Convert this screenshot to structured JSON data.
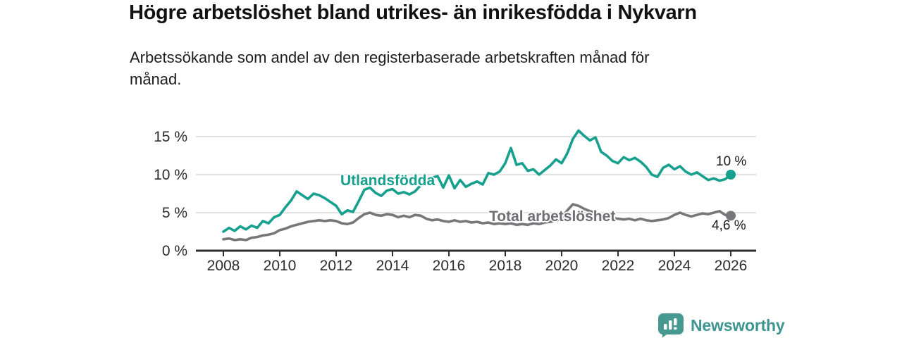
{
  "header": {
    "title": "Högre arbetslöshet bland utrikes- än inrikesfödda i Nykvarn",
    "subtitle": "Arbetssökande som andel av den registerbaserade arbetskraften månad för\nmånad."
  },
  "footer": {
    "brand": "Newsworthy"
  },
  "colors": {
    "background": "#ffffff",
    "title_text": "#111111",
    "subtitle_text": "#1d1d1d",
    "axis_text": "#2b2b2b",
    "grid": "#d8d8d8",
    "axis": "#2e2e2e",
    "foreign_born_line": "#17a08e",
    "total_line": "#77777b",
    "total_label": "#6e6e73",
    "end_label_text": "#1a1a1a",
    "brand_teal": "#3f9590"
  },
  "chart_data": {
    "type": "line",
    "title": "Högre arbetslöshet bland utrikes- än inrikesfödda i Nykvarn",
    "subtitle": "Arbetssökande som andel av den registerbaserade arbetskraften månad för månad.",
    "unit": "%",
    "xlabel": "",
    "ylabel": "",
    "grid": "horizontal",
    "legend_position": "inline-labels",
    "xlim": [
      2007.0,
      2027.0
    ],
    "ylim": [
      0,
      17.5
    ],
    "xticks": [
      2008,
      2010,
      2012,
      2014,
      2016,
      2018,
      2020,
      2022,
      2024,
      2026
    ],
    "yticks": [
      {
        "value": 0,
        "label": "0 %"
      },
      {
        "value": 5,
        "label": "5 %"
      },
      {
        "value": 10,
        "label": "10 %"
      },
      {
        "value": 15,
        "label": "15 %"
      }
    ],
    "x": [
      2008,
      2008.2,
      2008.4,
      2008.6,
      2008.8,
      2009,
      2009.2,
      2009.4,
      2009.6,
      2009.8,
      2010,
      2010.2,
      2010.4,
      2010.6,
      2010.8,
      2011,
      2011.2,
      2011.4,
      2011.6,
      2011.8,
      2012,
      2012.2,
      2012.4,
      2012.6,
      2012.8,
      2013,
      2013.2,
      2013.4,
      2013.6,
      2013.8,
      2014,
      2014.2,
      2014.4,
      2014.6,
      2014.8,
      2015,
      2015.2,
      2015.4,
      2015.6,
      2015.8,
      2016,
      2016.2,
      2016.4,
      2016.6,
      2016.8,
      2017,
      2017.2,
      2017.4,
      2017.6,
      2017.8,
      2018,
      2018.2,
      2018.4,
      2018.6,
      2018.8,
      2019,
      2019.2,
      2019.4,
      2019.6,
      2019.8,
      2020,
      2020.2,
      2020.4,
      2020.6,
      2020.8,
      2021,
      2021.2,
      2021.4,
      2021.6,
      2021.8,
      2022,
      2022.2,
      2022.4,
      2022.6,
      2022.8,
      2023,
      2023.2,
      2023.4,
      2023.6,
      2023.8,
      2024,
      2024.2,
      2024.4,
      2024.6,
      2024.8,
      2025,
      2025.2,
      2025.4,
      2025.6,
      2025.8,
      2026
    ],
    "series": [
      {
        "name": "Utlandsfödda",
        "color": "#17a08e",
        "end_label": "10 %",
        "end_value": 10.0,
        "values": [
          2.5,
          3.0,
          2.6,
          3.2,
          2.8,
          3.3,
          3.0,
          3.9,
          3.6,
          4.4,
          4.7,
          5.7,
          6.6,
          7.8,
          7.3,
          6.8,
          7.5,
          7.3,
          6.9,
          6.4,
          5.9,
          4.8,
          5.3,
          5.1,
          6.5,
          8.0,
          8.3,
          7.6,
          7.2,
          7.9,
          8.1,
          7.5,
          7.7,
          7.4,
          7.8,
          8.6,
          9.0,
          9.6,
          9.8,
          8.3,
          9.9,
          8.2,
          9.3,
          8.4,
          8.8,
          9.1,
          8.7,
          10.2,
          10.0,
          10.4,
          11.5,
          13.5,
          11.3,
          11.5,
          10.5,
          10.7,
          10.0,
          10.6,
          11.2,
          12.0,
          11.5,
          12.8,
          14.7,
          15.8,
          15.1,
          14.5,
          14.9,
          13.0,
          12.5,
          11.8,
          11.5,
          12.3,
          11.9,
          12.2,
          11.7,
          11.0,
          10.0,
          9.7,
          10.9,
          11.3,
          10.7,
          11.1,
          10.4,
          10.0,
          10.3,
          9.8,
          9.3,
          9.5,
          9.2,
          9.4,
          10.0
        ]
      },
      {
        "name": "Total arbetslöshet",
        "color": "#77777b",
        "end_label": "4,6 %",
        "end_value": 4.6,
        "values": [
          1.5,
          1.6,
          1.4,
          1.5,
          1.4,
          1.7,
          1.8,
          2.0,
          2.1,
          2.3,
          2.7,
          2.9,
          3.2,
          3.4,
          3.6,
          3.8,
          3.9,
          4.0,
          3.9,
          4.0,
          3.9,
          3.6,
          3.5,
          3.7,
          4.3,
          4.8,
          5.0,
          4.7,
          4.6,
          4.8,
          4.7,
          4.4,
          4.6,
          4.4,
          4.7,
          4.6,
          4.2,
          4.0,
          4.1,
          3.9,
          3.8,
          4.0,
          3.8,
          3.9,
          3.7,
          3.8,
          3.6,
          3.7,
          3.5,
          3.6,
          3.5,
          3.6,
          3.4,
          3.5,
          3.4,
          3.6,
          3.5,
          3.7,
          3.8,
          3.9,
          4.3,
          5.3,
          6.1,
          5.9,
          5.5,
          5.2,
          5.0,
          4.7,
          4.5,
          4.3,
          4.2,
          4.1,
          4.2,
          4.0,
          4.2,
          4.0,
          3.9,
          4.0,
          4.1,
          4.3,
          4.7,
          5.0,
          4.7,
          4.5,
          4.7,
          4.9,
          4.8,
          5.0,
          5.2,
          4.7,
          4.6
        ]
      }
    ]
  }
}
